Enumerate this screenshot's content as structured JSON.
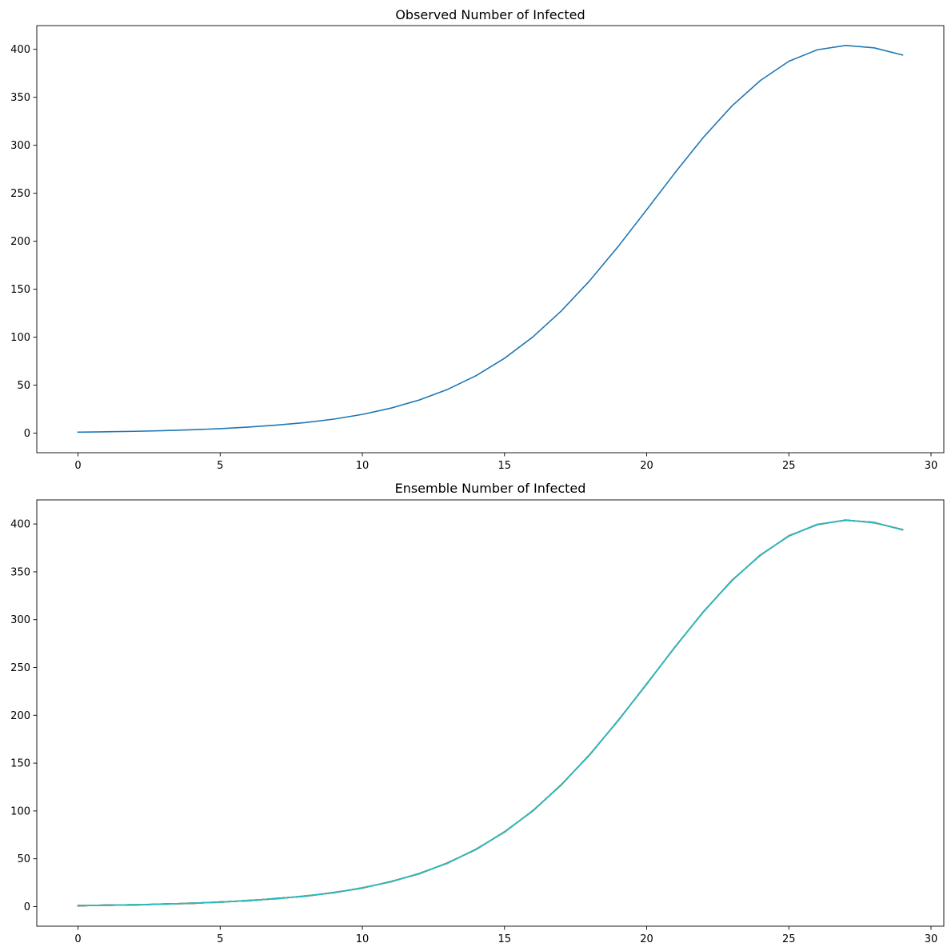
{
  "chart_data": [
    {
      "type": "line",
      "title": "Observed Number of Infected",
      "xlabel": "",
      "ylabel": "",
      "xlim": [
        -1.45,
        30.45
      ],
      "ylim": [
        -20.4,
        424.7
      ],
      "xticks": [
        0,
        5,
        10,
        15,
        20,
        25,
        30
      ],
      "yticks": [
        0,
        50,
        100,
        150,
        200,
        250,
        300,
        350,
        400
      ],
      "grid": false,
      "series": [
        {
          "color": "#1f77b4",
          "x": [
            0,
            1,
            2,
            3,
            4,
            5,
            6,
            7,
            8,
            9,
            10,
            11,
            12,
            13,
            14,
            15,
            16,
            17,
            18,
            19,
            20,
            21,
            22,
            23,
            24,
            25,
            26,
            27,
            28,
            29
          ],
          "values": [
            1.0,
            1.4,
            1.9,
            2.6,
            3.5,
            4.7,
            6.3,
            8.4,
            11.0,
            14.6,
            19.5,
            26.0,
            34.5,
            45.6,
            59.9,
            78.0,
            100.3,
            127.4,
            159.0,
            194.6,
            232.8,
            271.5,
            308.4,
            341.0,
            367.5,
            387.5,
            399.5,
            404.0,
            401.5,
            394.0
          ]
        }
      ]
    },
    {
      "type": "line",
      "title": "Ensemble Number of Infected",
      "xlabel": "",
      "ylabel": "",
      "xlim": [
        -1.45,
        30.45
      ],
      "ylim": [
        -20.5,
        425.2
      ],
      "xticks": [
        0,
        5,
        10,
        15,
        20,
        25,
        30
      ],
      "yticks": [
        0,
        50,
        100,
        150,
        200,
        250,
        300,
        350,
        400
      ],
      "grid": false,
      "series": [
        {
          "color": "#1f77b4",
          "x": [
            0,
            1,
            2,
            3,
            4,
            5,
            6,
            7,
            8,
            9,
            10,
            11,
            12,
            13,
            14,
            15,
            16,
            17,
            18,
            19,
            20,
            21,
            22,
            23,
            24,
            25,
            26,
            27,
            28,
            29
          ],
          "values": [
            1.0,
            1.4,
            1.9,
            2.6,
            3.5,
            4.7,
            6.3,
            8.4,
            11.0,
            14.6,
            19.5,
            26.0,
            34.5,
            45.6,
            59.9,
            78.0,
            100.3,
            127.4,
            159.0,
            194.6,
            232.8,
            271.5,
            308.4,
            341.0,
            367.5,
            387.5,
            399.5,
            404.0,
            401.5,
            394.0
          ]
        },
        {
          "color": "#ff7f0e",
          "x": [
            0,
            1,
            2,
            3,
            4,
            5,
            6,
            7,
            8,
            9,
            10,
            11,
            12,
            13,
            14,
            15,
            16,
            17,
            18,
            19,
            20,
            21,
            22,
            23,
            24,
            25,
            26,
            27,
            28,
            29
          ],
          "values": [
            0.6,
            1.8,
            1.5,
            2.9,
            3.2,
            5.0,
            6.0,
            8.7,
            10.7,
            14.9,
            19.2,
            26.3,
            34.2,
            45.9,
            59.6,
            78.3,
            100.0,
            127.7,
            158.7,
            194.9,
            232.5,
            271.8,
            308.1,
            341.3,
            367.2,
            387.8,
            399.2,
            404.3,
            401.2,
            394.3
          ]
        },
        {
          "color": "#2ca02c",
          "x": [
            0,
            1,
            2,
            3,
            4,
            5,
            6,
            7,
            8,
            9,
            10,
            11,
            12,
            13,
            14,
            15,
            16,
            17,
            18,
            19,
            20,
            21,
            22,
            23,
            24,
            25,
            26,
            27,
            28,
            29
          ],
          "values": [
            1.3,
            1.1,
            2.2,
            2.3,
            3.8,
            4.4,
            6.6,
            8.1,
            11.3,
            14.3,
            19.8,
            25.7,
            34.8,
            45.3,
            60.2,
            77.7,
            100.6,
            127.1,
            159.3,
            194.3,
            233.1,
            271.2,
            308.7,
            340.7,
            367.8,
            387.2,
            399.8,
            403.7,
            401.8,
            393.7
          ]
        },
        {
          "color": "#d62728",
          "x": [
            0,
            1,
            2,
            3,
            4,
            5,
            6,
            7,
            8,
            9,
            10,
            11,
            12,
            13,
            14,
            15,
            16,
            17,
            18,
            19,
            20,
            21,
            22,
            23,
            24,
            25,
            26,
            27,
            28,
            29
          ],
          "values": [
            0.8,
            1.6,
            1.7,
            2.8,
            3.3,
            4.9,
            6.1,
            8.6,
            10.8,
            14.8,
            19.3,
            26.2,
            34.3,
            45.8,
            59.7,
            78.2,
            100.1,
            127.6,
            158.8,
            194.8,
            232.6,
            271.7,
            308.2,
            341.2,
            367.3,
            387.7,
            399.3,
            404.2,
            401.3,
            394.2
          ]
        },
        {
          "color": "#9467bd",
          "x": [
            0,
            1,
            2,
            3,
            4,
            5,
            6,
            7,
            8,
            9,
            10,
            11,
            12,
            13,
            14,
            15,
            16,
            17,
            18,
            19,
            20,
            21,
            22,
            23,
            24,
            25,
            26,
            27,
            28,
            29
          ],
          "values": [
            1.2,
            1.2,
            2.1,
            2.4,
            3.7,
            4.5,
            6.5,
            8.2,
            11.2,
            14.4,
            19.7,
            25.8,
            34.7,
            45.4,
            60.1,
            77.8,
            100.5,
            127.2,
            159.2,
            194.4,
            233.0,
            271.3,
            308.6,
            340.8,
            367.7,
            387.3,
            399.7,
            403.8,
            401.7,
            393.8
          ]
        },
        {
          "color": "#8c564b",
          "x": [
            0,
            1,
            2,
            3,
            4,
            5,
            6,
            7,
            8,
            9,
            10,
            11,
            12,
            13,
            14,
            15,
            16,
            17,
            18,
            19,
            20,
            21,
            22,
            23,
            24,
            25,
            26,
            27,
            28,
            29
          ],
          "values": [
            0.9,
            1.5,
            1.8,
            2.7,
            3.4,
            4.8,
            6.2,
            8.5,
            10.9,
            14.7,
            19.4,
            26.1,
            34.4,
            45.7,
            59.8,
            78.1,
            100.2,
            127.5,
            158.9,
            194.7,
            232.7,
            271.6,
            308.3,
            341.1,
            367.4,
            387.6,
            399.4,
            404.1,
            401.4,
            394.1
          ]
        },
        {
          "color": "#e377c2",
          "x": [
            0,
            1,
            2,
            3,
            4,
            5,
            6,
            7,
            8,
            9,
            10,
            11,
            12,
            13,
            14,
            15,
            16,
            17,
            18,
            19,
            20,
            21,
            22,
            23,
            24,
            25,
            26,
            27,
            28,
            29
          ],
          "values": [
            1.1,
            1.3,
            2.0,
            2.5,
            3.6,
            4.6,
            6.4,
            8.3,
            11.1,
            14.5,
            19.6,
            25.9,
            34.6,
            45.5,
            60.0,
            77.9,
            100.4,
            127.3,
            159.1,
            194.5,
            232.9,
            271.4,
            308.5,
            340.9,
            367.6,
            387.4,
            399.6,
            403.9,
            401.6,
            393.9
          ]
        },
        {
          "color": "#7f7f7f",
          "x": [
            0,
            1,
            2,
            3,
            4,
            5,
            6,
            7,
            8,
            9,
            10,
            11,
            12,
            13,
            14,
            15,
            16,
            17,
            18,
            19,
            20,
            21,
            22,
            23,
            24,
            25,
            26,
            27,
            28,
            29
          ],
          "values": [
            0.7,
            1.7,
            1.6,
            2.8,
            3.3,
            4.9,
            6.1,
            8.6,
            10.8,
            14.8,
            19.3,
            26.2,
            34.3,
            45.8,
            59.7,
            78.2,
            100.1,
            127.6,
            158.8,
            194.8,
            232.6,
            271.7,
            308.2,
            341.2,
            367.3,
            387.7,
            399.3,
            404.2,
            401.3,
            394.2
          ]
        },
        {
          "color": "#bcbd22",
          "x": [
            0,
            1,
            2,
            3,
            4,
            5,
            6,
            7,
            8,
            9,
            10,
            11,
            12,
            13,
            14,
            15,
            16,
            17,
            18,
            19,
            20,
            21,
            22,
            23,
            24,
            25,
            26,
            27,
            28,
            29
          ],
          "values": [
            1.2,
            1.3,
            2.1,
            2.4,
            3.7,
            4.5,
            6.5,
            8.2,
            11.2,
            14.4,
            19.7,
            25.8,
            34.7,
            45.4,
            60.1,
            77.8,
            100.5,
            127.2,
            159.2,
            194.4,
            233.0,
            271.3,
            308.6,
            340.8,
            367.7,
            387.3,
            399.7,
            403.8,
            401.7,
            393.8
          ]
        },
        {
          "color": "#17becf",
          "x": [
            0,
            1,
            2,
            3,
            4,
            5,
            6,
            7,
            8,
            9,
            10,
            11,
            12,
            13,
            14,
            15,
            16,
            17,
            18,
            19,
            20,
            21,
            22,
            23,
            24,
            25,
            26,
            27,
            28,
            29
          ],
          "values": [
            1.0,
            1.4,
            1.9,
            2.6,
            3.5,
            4.7,
            6.3,
            8.4,
            11.0,
            14.6,
            19.5,
            26.0,
            34.5,
            45.6,
            59.9,
            78.0,
            100.3,
            127.4,
            159.0,
            194.6,
            232.8,
            271.5,
            308.4,
            341.0,
            367.5,
            387.5,
            399.5,
            404.0,
            401.5,
            394.0
          ]
        }
      ]
    }
  ]
}
